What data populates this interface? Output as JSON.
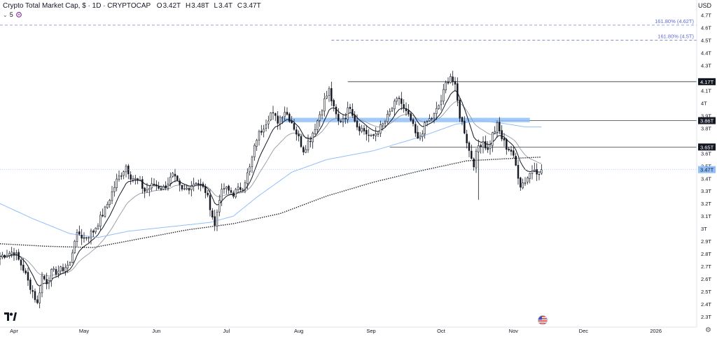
{
  "header": {
    "title": "Crypto Total Market Cap, $ · 1D · CRYPTOCAP",
    "ohlc": [
      {
        "k": "O",
        "v": "3.42T"
      },
      {
        "k": "H",
        "v": "3.48T"
      },
      {
        "k": "L",
        "v": "3.4T"
      },
      {
        "k": "C",
        "v": "3.47T"
      }
    ],
    "indicator_count": "5",
    "currency": "USD"
  },
  "icons": {
    "chevron": "chevron-down-icon",
    "indicator": "indicator-icon",
    "logo": "tradingview-logo-icon",
    "flag": "us-flag-icon",
    "settings": "gear-icon"
  },
  "colors": {
    "up": "#131722",
    "down": "#131722",
    "ema_fast": "#131722",
    "ema_mid": "#9598a1",
    "ema_long": "#90bff9",
    "sma_200": "#131722",
    "zone": "#90bff9",
    "fib": "#5b6bd6",
    "price_label_bg": "#131722",
    "last_price_bg": "#90bff9"
  },
  "chart_data": {
    "type": "candlestick",
    "title": "Crypto Total Market Cap, $ · 1D · CRYPTOCAP",
    "y_unit": "T USD",
    "ylim": [
      2.25,
      4.82
    ],
    "y_ticks": [
      {
        "v": 2.3,
        "label": "2.3T"
      },
      {
        "v": 2.4,
        "label": "2.4T"
      },
      {
        "v": 2.5,
        "label": "2.5T"
      },
      {
        "v": 2.6,
        "label": "2.6T"
      },
      {
        "v": 2.7,
        "label": "2.7T"
      },
      {
        "v": 2.8,
        "label": "2.8T"
      },
      {
        "v": 2.9,
        "label": "2.9T"
      },
      {
        "v": 3.0,
        "label": "3T"
      },
      {
        "v": 3.1,
        "label": "3.1T"
      },
      {
        "v": 3.2,
        "label": "3.2T"
      },
      {
        "v": 3.3,
        "label": "3.3T"
      },
      {
        "v": 3.4,
        "label": "3.4T"
      },
      {
        "v": 3.5,
        "label": "3.5T"
      },
      {
        "v": 3.6,
        "label": "3.6T"
      },
      {
        "v": 3.8,
        "label": "3.8T"
      },
      {
        "v": 3.9,
        "label": "3.9T"
      },
      {
        "v": 4.0,
        "label": "4T"
      },
      {
        "v": 4.1,
        "label": "4.1T"
      },
      {
        "v": 4.3,
        "label": "4.3T"
      },
      {
        "v": 4.4,
        "label": "4.4T"
      },
      {
        "v": 4.5,
        "label": "4.5T"
      },
      {
        "v": 4.6,
        "label": "4.6T"
      },
      {
        "v": 4.7,
        "label": "4.7T"
      }
    ],
    "x_ticks": [
      {
        "day": 6,
        "label": "Apr"
      },
      {
        "day": 36,
        "label": "May"
      },
      {
        "day": 67,
        "label": "Jun"
      },
      {
        "day": 97,
        "label": "Jul"
      },
      {
        "day": 128,
        "label": "Aug"
      },
      {
        "day": 159,
        "label": "Sep"
      },
      {
        "day": 189,
        "label": "Oct"
      },
      {
        "day": 220,
        "label": "Nov"
      },
      {
        "day": 250,
        "label": "Dec"
      },
      {
        "day": 281,
        "label": "2026"
      }
    ],
    "x_days_visible": [
      0,
      300
    ],
    "x_origin_date": "2025-03-26",
    "anchors": [
      [
        0,
        2.78
      ],
      [
        6,
        2.82
      ],
      [
        8,
        2.75
      ],
      [
        10,
        2.68
      ],
      [
        12,
        2.58
      ],
      [
        14,
        2.5
      ],
      [
        16,
        2.4
      ],
      [
        18,
        2.62
      ],
      [
        20,
        2.58
      ],
      [
        22,
        2.65
      ],
      [
        26,
        2.67
      ],
      [
        30,
        2.72
      ],
      [
        32,
        2.92
      ],
      [
        34,
        2.96
      ],
      [
        36,
        2.92
      ],
      [
        40,
        2.98
      ],
      [
        45,
        3.15
      ],
      [
        50,
        3.38
      ],
      [
        54,
        3.5
      ],
      [
        56,
        3.42
      ],
      [
        60,
        3.36
      ],
      [
        62,
        3.3
      ],
      [
        66,
        3.35
      ],
      [
        70,
        3.32
      ],
      [
        74,
        3.42
      ],
      [
        78,
        3.3
      ],
      [
        80,
        3.32
      ],
      [
        84,
        3.38
      ],
      [
        88,
        3.3
      ],
      [
        90,
        3.18
      ],
      [
        92,
        3.02
      ],
      [
        94,
        3.25
      ],
      [
        96,
        3.32
      ],
      [
        100,
        3.28
      ],
      [
        104,
        3.34
      ],
      [
        107,
        3.48
      ],
      [
        110,
        3.72
      ],
      [
        113,
        3.82
      ],
      [
        116,
        3.92
      ],
      [
        119,
        3.86
      ],
      [
        122,
        3.94
      ],
      [
        125,
        3.85
      ],
      [
        128,
        3.72
      ],
      [
        130,
        3.63
      ],
      [
        133,
        3.72
      ],
      [
        136,
        3.86
      ],
      [
        139,
        4.02
      ],
      [
        141,
        4.1
      ],
      [
        143,
        3.95
      ],
      [
        145,
        3.85
      ],
      [
        148,
        3.9
      ],
      [
        150,
        3.98
      ],
      [
        153,
        3.82
      ],
      [
        156,
        3.78
      ],
      [
        159,
        3.72
      ],
      [
        162,
        3.78
      ],
      [
        165,
        3.85
      ],
      [
        168,
        3.96
      ],
      [
        171,
        4.04
      ],
      [
        173,
        3.95
      ],
      [
        176,
        3.86
      ],
      [
        179,
        3.7
      ],
      [
        181,
        3.78
      ],
      [
        183,
        3.85
      ],
      [
        186,
        3.9
      ],
      [
        189,
        4.02
      ],
      [
        191,
        4.15
      ],
      [
        193,
        4.22
      ],
      [
        195,
        4.12
      ],
      [
        197,
        3.9
      ],
      [
        199,
        3.78
      ],
      [
        201,
        3.62
      ],
      [
        203,
        3.52
      ],
      [
        205,
        3.66
      ],
      [
        207,
        3.7
      ],
      [
        209,
        3.62
      ],
      [
        211,
        3.75
      ],
      [
        213,
        3.82
      ],
      [
        215,
        3.72
      ],
      [
        217,
        3.65
      ],
      [
        219,
        3.62
      ],
      [
        221,
        3.5
      ],
      [
        223,
        3.35
      ],
      [
        225,
        3.38
      ],
      [
        227,
        3.44
      ],
      [
        229,
        3.5
      ],
      [
        231,
        3.42
      ],
      [
        232,
        3.47
      ]
    ],
    "sma200_anchors": [
      [
        0,
        2.88
      ],
      [
        20,
        2.86
      ],
      [
        40,
        2.85
      ],
      [
        60,
        2.92
      ],
      [
        80,
        2.99
      ],
      [
        100,
        3.04
      ],
      [
        120,
        3.12
      ],
      [
        140,
        3.26
      ],
      [
        160,
        3.37
      ],
      [
        180,
        3.46
      ],
      [
        200,
        3.54
      ],
      [
        220,
        3.56
      ],
      [
        232,
        3.57
      ]
    ],
    "ema_long_anchors": [
      [
        0,
        3.2
      ],
      [
        14,
        3.08
      ],
      [
        30,
        2.96
      ],
      [
        42,
        2.93
      ],
      [
        55,
        2.98
      ],
      [
        70,
        3.01
      ],
      [
        90,
        3.05
      ],
      [
        100,
        3.1
      ],
      [
        110,
        3.25
      ],
      [
        125,
        3.45
      ],
      [
        140,
        3.55
      ],
      [
        160,
        3.62
      ],
      [
        180,
        3.73
      ],
      [
        195,
        3.83
      ],
      [
        205,
        3.86
      ],
      [
        215,
        3.84
      ],
      [
        225,
        3.81
      ],
      [
        232,
        3.81
      ]
    ],
    "horizontal_levels": [
      {
        "value": 4.17,
        "label": "4.17T",
        "from_day": 149
      },
      {
        "value": 3.86,
        "label": "3.86T",
        "from_day": 212
      },
      {
        "value": 3.65,
        "label": "3.65T",
        "from_day": 167
      }
    ],
    "fib_levels": [
      {
        "value": 4.62,
        "label": "161.80% (4.62T)",
        "from_day": 0
      },
      {
        "value": 4.5,
        "label": "161.80% (4.5T)",
        "from_day": 142
      }
    ],
    "zone": {
      "from_day": 120,
      "to_day": 227,
      "value": 3.865,
      "height": 0.035
    },
    "spike": {
      "day": 205,
      "low": 3.23
    },
    "last_price": {
      "value": 3.47,
      "label": "3.47T"
    },
    "grid": false,
    "legend": "none"
  }
}
